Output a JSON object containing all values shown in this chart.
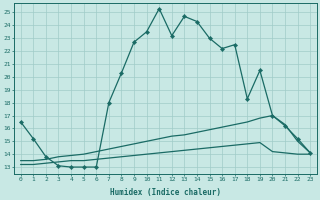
{
  "xlabel": "Humidex (Indice chaleur)",
  "background_color": "#c8e8e4",
  "grid_color": "#a0ccc8",
  "line_color": "#1a6b65",
  "xlim": [
    -0.5,
    23.5
  ],
  "ylim": [
    12.5,
    25.7
  ],
  "xticks": [
    0,
    1,
    2,
    3,
    4,
    5,
    6,
    7,
    8,
    9,
    10,
    11,
    12,
    13,
    14,
    15,
    16,
    17,
    18,
    19,
    20,
    21,
    22,
    23
  ],
  "yticks": [
    13,
    14,
    15,
    16,
    17,
    18,
    19,
    20,
    21,
    22,
    23,
    24,
    25
  ],
  "series1_x": [
    0,
    1,
    2,
    3,
    4,
    5,
    6,
    7,
    8,
    9,
    10,
    11,
    12,
    13,
    14,
    15,
    16,
    17,
    18,
    19,
    20,
    21,
    22,
    23
  ],
  "series1_y": [
    16.5,
    15.2,
    13.8,
    13.1,
    13.0,
    13.0,
    13.0,
    18.0,
    20.3,
    22.7,
    23.5,
    25.3,
    23.2,
    24.7,
    24.3,
    23.0,
    22.2,
    22.5,
    18.3,
    20.5,
    17.0,
    16.2,
    15.2,
    14.1
  ],
  "series2_x": [
    0,
    1,
    2,
    3,
    4,
    5,
    6,
    7,
    8,
    9,
    10,
    11,
    12,
    13,
    14,
    15,
    16,
    17,
    18,
    19,
    20,
    21,
    22,
    23
  ],
  "series2_y": [
    13.5,
    13.5,
    13.6,
    13.8,
    13.9,
    14.0,
    14.2,
    14.4,
    14.6,
    14.8,
    15.0,
    15.2,
    15.4,
    15.5,
    15.7,
    15.9,
    16.1,
    16.3,
    16.5,
    16.8,
    17.0,
    16.3,
    15.0,
    14.1
  ],
  "series3_x": [
    0,
    1,
    2,
    3,
    4,
    5,
    6,
    7,
    8,
    9,
    10,
    11,
    12,
    13,
    14,
    15,
    16,
    17,
    18,
    19,
    20,
    21,
    22,
    23
  ],
  "series3_y": [
    13.2,
    13.2,
    13.3,
    13.4,
    13.5,
    13.5,
    13.6,
    13.7,
    13.8,
    13.9,
    14.0,
    14.1,
    14.2,
    14.3,
    14.4,
    14.5,
    14.6,
    14.7,
    14.8,
    14.9,
    14.2,
    14.1,
    14.0,
    14.0
  ]
}
